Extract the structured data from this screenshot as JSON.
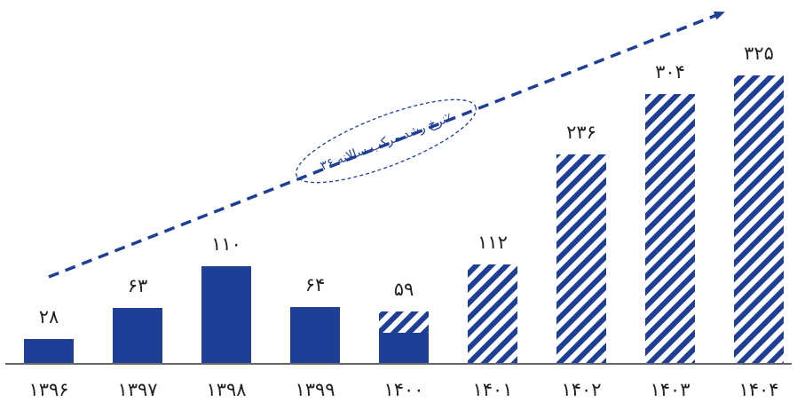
{
  "chart_data": {
    "type": "bar",
    "categories": [
      "۱۳۹۶",
      "۱۳۹۷",
      "۱۳۹۸",
      "۱۳۹۹",
      "۱۴۰۰",
      "۱۴۰۱",
      "۱۴۰۲",
      "۱۴۰۳",
      "۱۴۰۴"
    ],
    "values": [
      28,
      63,
      110,
      64,
      59,
      112,
      236,
      304,
      325
    ],
    "value_labels": [
      "۲۸",
      "۶۳",
      "۱۱۰",
      "۶۴",
      "۵۹",
      "۱۱۲",
      "۲۳۶",
      "۳۰۴",
      "۳۲۵"
    ],
    "actual_values": [
      28,
      63,
      110,
      64,
      35,
      null,
      null,
      null,
      null
    ],
    "forecast_values": [
      null,
      null,
      null,
      null,
      59,
      112,
      236,
      304,
      325
    ],
    "title": "",
    "xlabel": "",
    "ylabel": "",
    "ylim": [
      0,
      350
    ],
    "grid": false,
    "annotation": {
      "text": "نرخ رشد مرکب سالانه ۳۶٪",
      "kind": "dashed-arrow"
    },
    "colors": {
      "actual": "#1f3f96",
      "forecast_stripe": "#1f3f96",
      "forecast_bg": "#ffffff",
      "axis": "#666666",
      "arrow": "#1f3f96"
    }
  }
}
